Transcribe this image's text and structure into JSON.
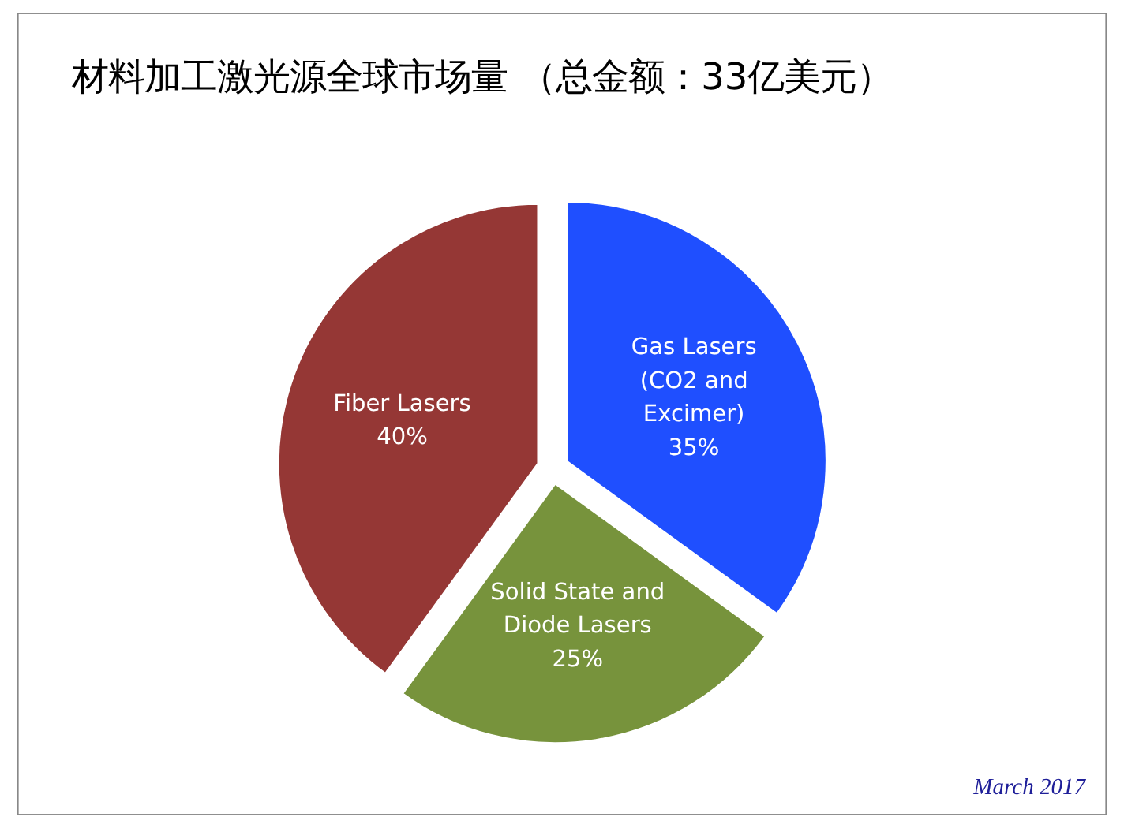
{
  "chart_data": {
    "type": "pie",
    "title": "材料加工激光源全球市场量 （总金额：33亿美元）",
    "categories": [
      "Gas Lasers (CO2 and Excimer)",
      "Solid State and Diode Lasers",
      "Fiber Lasers"
    ],
    "values": [
      35,
      25,
      40
    ],
    "colors": [
      "#1f4fff",
      "#77933c",
      "#953735"
    ],
    "value_labels": [
      "35%",
      "25%",
      "40%"
    ],
    "annotations": [
      "March 2017"
    ]
  }
}
